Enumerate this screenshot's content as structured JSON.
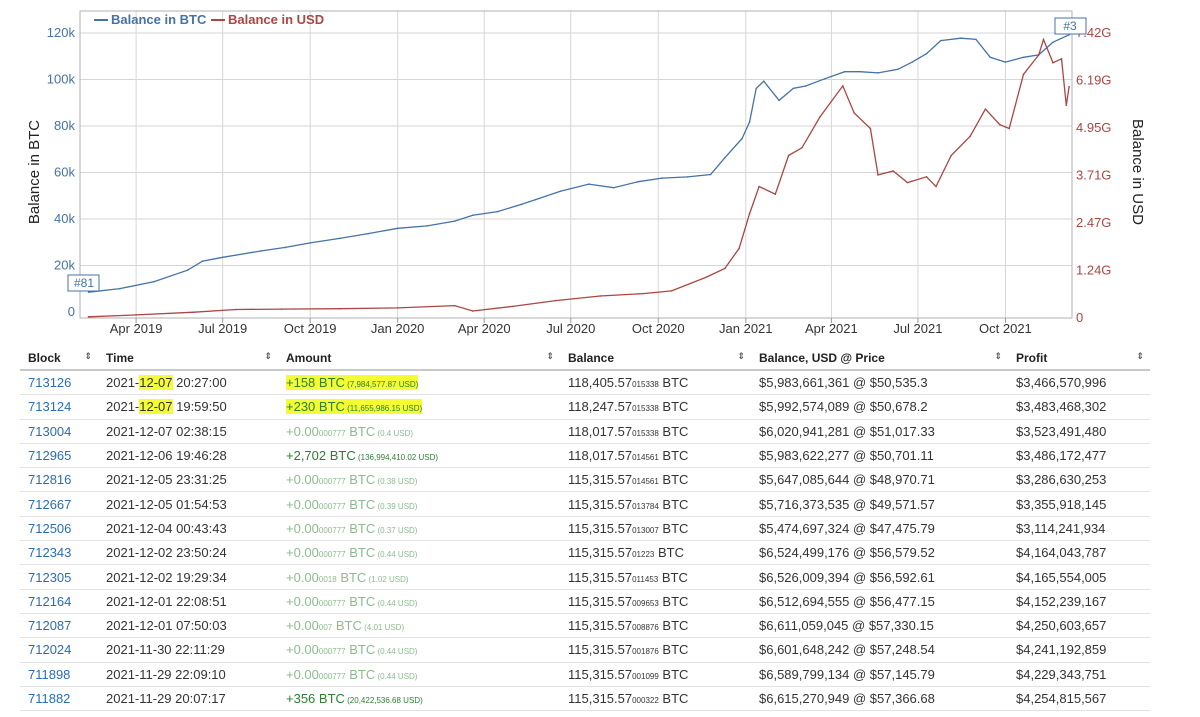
{
  "chart": {
    "legend": [
      {
        "label": "Balance in BTC",
        "color": "#4572a7"
      },
      {
        "label": "Balance in USD",
        "color": "#aa4643"
      }
    ],
    "left_axis_title": "Balance in BTC",
    "right_axis_title": "Balance in USD",
    "left_ticks": [
      "0",
      "20k",
      "40k",
      "60k",
      "80k",
      "100k",
      "120k"
    ],
    "right_ticks": [
      "0",
      "1.24G",
      "2.47G",
      "3.71G",
      "4.95G",
      "6.19G",
      "7.42G"
    ],
    "x_ticks": [
      "Apr 2019",
      "Jul 2019",
      "Oct 2019",
      "Jan 2020",
      "Apr 2020",
      "Jul 2020",
      "Oct 2020",
      "Jan 2021",
      "Apr 2021",
      "Jul 2021",
      "Oct 2021"
    ],
    "marker_start": "#81",
    "marker_end": "#3"
  },
  "chart_data": {
    "type": "line",
    "series": [
      {
        "name": "Balance in BTC",
        "axis": "left",
        "x": [
          "2019-02-10",
          "2019-03-15",
          "2019-04-20",
          "2019-05-25",
          "2019-06-10",
          "2019-07-01",
          "2019-08-10",
          "2019-09-05",
          "2019-10-01",
          "2019-11-01",
          "2019-12-01",
          "2020-01-01",
          "2020-02-01",
          "2020-03-01",
          "2020-03-20",
          "2020-04-15",
          "2020-05-10",
          "2020-05-25",
          "2020-06-20",
          "2020-07-20",
          "2020-08-15",
          "2020-09-10",
          "2020-10-05",
          "2020-11-01",
          "2020-11-25",
          "2020-12-10",
          "2020-12-28",
          "2021-01-05",
          "2021-01-12",
          "2021-01-20",
          "2021-02-05",
          "2021-02-20",
          "2021-03-05",
          "2021-03-25",
          "2021-04-15",
          "2021-05-01",
          "2021-05-20",
          "2021-06-10",
          "2021-06-25",
          "2021-07-10",
          "2021-07-25",
          "2021-08-15",
          "2021-08-31",
          "2021-09-15",
          "2021-10-01",
          "2021-10-20",
          "2021-11-05",
          "2021-11-20",
          "2021-12-07"
        ],
        "y": [
          10800,
          12300,
          15200,
          20000,
          23800,
          25400,
          28000,
          29500,
          31400,
          33300,
          35300,
          37500,
          38500,
          40500,
          43000,
          44500,
          47500,
          49500,
          53000,
          56000,
          54500,
          57000,
          58500,
          59000,
          60000,
          67000,
          75000,
          82000,
          96000,
          99000,
          91000,
          96000,
          97000,
          100000,
          103000,
          103000,
          102500,
          104000,
          107000,
          110500,
          116000,
          117000,
          116500,
          109000,
          107000,
          109000,
          110000,
          115300,
          118406
        ]
      },
      {
        "name": "Balance in USD",
        "axis": "right",
        "unit": "USD",
        "x": [
          "2019-02-10",
          "2019-04-01",
          "2019-06-01",
          "2019-07-15",
          "2019-09-01",
          "2019-11-01",
          "2020-01-01",
          "2020-03-01",
          "2020-03-20",
          "2020-05-01",
          "2020-06-15",
          "2020-08-01",
          "2020-09-15",
          "2020-10-15",
          "2020-11-20",
          "2020-12-10",
          "2020-12-25",
          "2021-01-05",
          "2021-01-15",
          "2021-02-01",
          "2021-02-15",
          "2021-03-01",
          "2021-03-20",
          "2021-04-13",
          "2021-04-25",
          "2021-05-12",
          "2021-05-20",
          "2021-06-05",
          "2021-06-20",
          "2021-07-10",
          "2021-07-20",
          "2021-08-05",
          "2021-08-25",
          "2021-09-10",
          "2021-09-25",
          "2021-10-05",
          "2021-10-20",
          "2021-11-05",
          "2021-11-10",
          "2021-11-20",
          "2021-11-29",
          "2021-12-04",
          "2021-12-07"
        ],
        "y": [
          30000000,
          80000000,
          150000000,
          220000000,
          230000000,
          240000000,
          260000000,
          320000000,
          180000000,
          300000000,
          450000000,
          570000000,
          630000000,
          700000000,
          1050000000,
          1280000000,
          1800000000,
          2700000000,
          3400000000,
          3200000000,
          4200000000,
          4400000000,
          5200000000,
          6000000000,
          5300000000,
          4900000000,
          3700000000,
          3800000000,
          3500000000,
          3650000000,
          3400000000,
          4200000000,
          4700000000,
          5400000000,
          5000000000,
          4900000000,
          6300000000,
          6800000000,
          7200000000,
          6600000000,
          6700000000,
          5500000000,
          5980000000
        ]
      }
    ],
    "ylim_left": [
      0,
      120000
    ],
    "ylim_right": [
      0,
      7420000000
    ],
    "xlim": [
      "2019-02-01",
      "2021-12-10"
    ],
    "x_tick_labels": [
      "Apr 2019",
      "Jul 2019",
      "Oct 2019",
      "Jan 2020",
      "Apr 2020",
      "Jul 2020",
      "Oct 2020",
      "Jan 2021",
      "Apr 2021",
      "Jul 2021",
      "Oct 2021"
    ],
    "ylabel": "Balance in BTC",
    "y2label": "Balance in USD",
    "grid": true,
    "legend_position": "top-left"
  },
  "table": {
    "headers": [
      "Block",
      "Time",
      "Amount",
      "Balance",
      "Balance, USD @ Price",
      "Profit"
    ],
    "sort_glyph": "⇕",
    "rows": [
      {
        "block": "713126",
        "date": "2021-",
        "date_hl": "12-07",
        "time": " 20:27:00",
        "amt_main": "+158 BTC",
        "amt_small": "",
        "amt_usd": " (7,984,577.87 USD)",
        "hl": true,
        "dust": false,
        "bal_main": "118,405.57",
        "bal_small": "015338",
        "bal_unit": " BTC",
        "usd": "$5,983,661,361 @ $50,535.3",
        "profit": "$3,466,570,996"
      },
      {
        "block": "713124",
        "date": "2021-",
        "date_hl": "12-07",
        "time": " 19:59:50",
        "amt_main": "+230 BTC",
        "amt_small": "",
        "amt_usd": " (11,655,986.15 USD)",
        "hl": true,
        "dust": false,
        "bal_main": "118,247.57",
        "bal_small": "015338",
        "bal_unit": " BTC",
        "usd": "$5,992,574,089 @ $50,678.2",
        "profit": "$3,483,468,302"
      },
      {
        "block": "713004",
        "date": "2021-12-07",
        "date_hl": "",
        "time": " 02:38:15",
        "amt_main": "+0.00",
        "amt_small": "000777",
        "amt_unit": " BTC",
        "amt_usd": " (0.4 USD)",
        "hl": false,
        "dust": true,
        "bal_main": "118,017.57",
        "bal_small": "015338",
        "bal_unit": " BTC",
        "usd": "$6,020,941,281 @ $51,017.33",
        "profit": "$3,523,491,480"
      },
      {
        "block": "712965",
        "date": "2021-12-06",
        "date_hl": "",
        "time": " 19:46:28",
        "amt_main": "+2,702 BTC",
        "amt_small": "",
        "amt_usd": " (136,994,410.02 USD)",
        "hl": false,
        "dust": false,
        "bal_main": "118,017.57",
        "bal_small": "014561",
        "bal_unit": " BTC",
        "usd": "$5,983,622,277 @ $50,701.11",
        "profit": "$3,486,172,477"
      },
      {
        "block": "712816",
        "date": "2021-12-05",
        "date_hl": "",
        "time": " 23:31:25",
        "amt_main": "+0.00",
        "amt_small": "000777",
        "amt_unit": " BTC",
        "amt_usd": " (0.38 USD)",
        "hl": false,
        "dust": true,
        "bal_main": "115,315.57",
        "bal_small": "014561",
        "bal_unit": " BTC",
        "usd": "$5,647,085,644 @ $48,970.71",
        "profit": "$3,286,630,253"
      },
      {
        "block": "712667",
        "date": "2021-12-05",
        "date_hl": "",
        "time": " 01:54:53",
        "amt_main": "+0.00",
        "amt_small": "000777",
        "amt_unit": " BTC",
        "amt_usd": " (0.39 USD)",
        "hl": false,
        "dust": true,
        "bal_main": "115,315.57",
        "bal_small": "013784",
        "bal_unit": " BTC",
        "usd": "$5,716,373,535 @ $49,571.57",
        "profit": "$3,355,918,145"
      },
      {
        "block": "712506",
        "date": "2021-12-04",
        "date_hl": "",
        "time": " 00:43:43",
        "amt_main": "+0.00",
        "amt_small": "000777",
        "amt_unit": " BTC",
        "amt_usd": " (0.37 USD)",
        "hl": false,
        "dust": true,
        "bal_main": "115,315.57",
        "bal_small": "013007",
        "bal_unit": " BTC",
        "usd": "$5,474,697,324 @ $47,475.79",
        "profit": "$3,114,241,934"
      },
      {
        "block": "712343",
        "date": "2021-12-02",
        "date_hl": "",
        "time": " 23:50:24",
        "amt_main": "+0.00",
        "amt_small": "000777",
        "amt_unit": " BTC",
        "amt_usd": " (0.44 USD)",
        "hl": false,
        "dust": true,
        "bal_main": "115,315.57",
        "bal_small": "01223",
        "bal_unit": " BTC",
        "usd": "$6,524,499,176 @ $56,579.52",
        "profit": "$4,164,043,787"
      },
      {
        "block": "712305",
        "date": "2021-12-02",
        "date_hl": "",
        "time": " 19:29:34",
        "amt_main": "+0.00",
        "amt_small": "0018",
        "amt_unit": " BTC",
        "amt_usd": " (1.02 USD)",
        "hl": false,
        "dust": true,
        "bal_main": "115,315.57",
        "bal_small": "011453",
        "bal_unit": " BTC",
        "usd": "$6,526,009,394 @ $56,592.61",
        "profit": "$4,165,554,005"
      },
      {
        "block": "712164",
        "date": "2021-12-01",
        "date_hl": "",
        "time": " 22:08:51",
        "amt_main": "+0.00",
        "amt_small": "000777",
        "amt_unit": " BTC",
        "amt_usd": " (0.44 USD)",
        "hl": false,
        "dust": true,
        "bal_main": "115,315.57",
        "bal_small": "009653",
        "bal_unit": " BTC",
        "usd": "$6,512,694,555 @ $56,477.15",
        "profit": "$4,152,239,167"
      },
      {
        "block": "712087",
        "date": "2021-12-01",
        "date_hl": "",
        "time": " 07:50:03",
        "amt_main": "+0.00",
        "amt_small": "007",
        "amt_unit": " BTC",
        "amt_usd": " (4.01 USD)",
        "hl": false,
        "dust": true,
        "bal_main": "115,315.57",
        "bal_small": "008876",
        "bal_unit": " BTC",
        "usd": "$6,611,059,045 @ $57,330.15",
        "profit": "$4,250,603,657"
      },
      {
        "block": "712024",
        "date": "2021-11-30",
        "date_hl": "",
        "time": " 22:11:29",
        "amt_main": "+0.00",
        "amt_small": "000777",
        "amt_unit": " BTC",
        "amt_usd": " (0.44 USD)",
        "hl": false,
        "dust": true,
        "bal_main": "115,315.57",
        "bal_small": "001876",
        "bal_unit": " BTC",
        "usd": "$6,601,648,242 @ $57,248.54",
        "profit": "$4,241,192,859"
      },
      {
        "block": "711898",
        "date": "2021-11-29",
        "date_hl": "",
        "time": " 22:09:10",
        "amt_main": "+0.00",
        "amt_small": "000777",
        "amt_unit": " BTC",
        "amt_usd": " (0.44 USD)",
        "hl": false,
        "dust": true,
        "bal_main": "115,315.57",
        "bal_small": "001099",
        "bal_unit": " BTC",
        "usd": "$6,589,799,134 @ $57,145.79",
        "profit": "$4,229,343,751"
      },
      {
        "block": "711882",
        "date": "2021-11-29",
        "date_hl": "",
        "time": " 20:07:17",
        "amt_main": "+356 BTC",
        "amt_small": "",
        "amt_usd": " (20,422,536.68 USD)",
        "hl": false,
        "dust": false,
        "bal_main": "115,315.57",
        "bal_small": "000322",
        "bal_unit": " BTC",
        "usd": "$6,615,270,949 @ $57,366.68",
        "profit": "$4,254,815,567"
      }
    ]
  }
}
